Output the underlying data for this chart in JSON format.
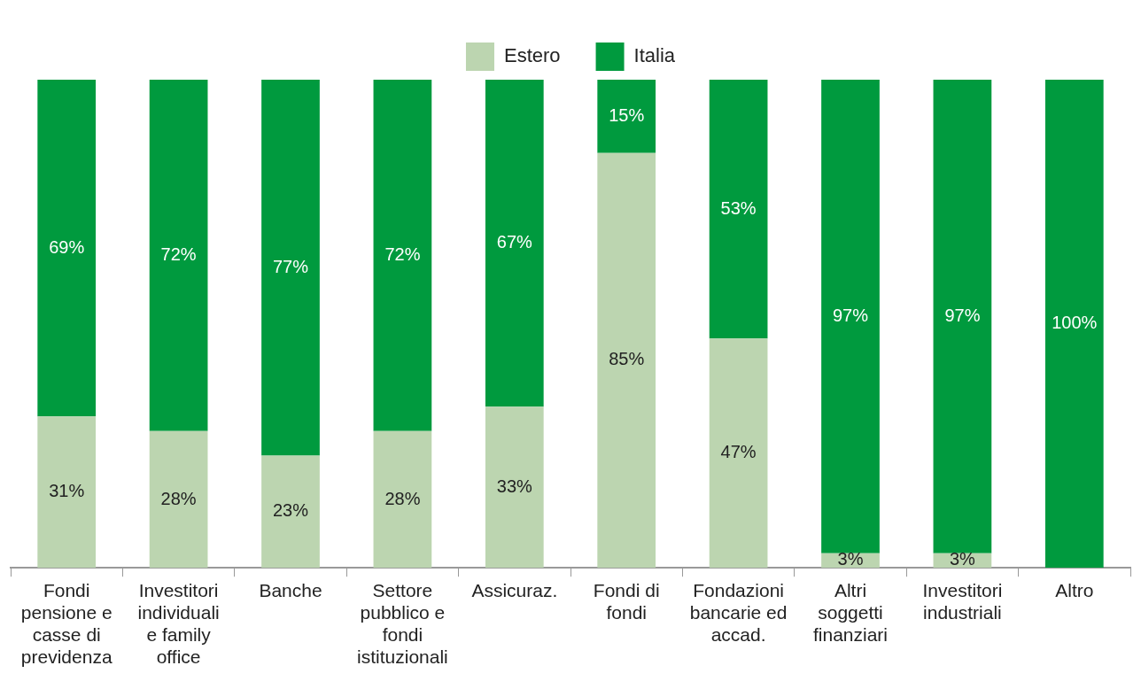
{
  "chart_data": {
    "type": "bar",
    "stacked": true,
    "legend": "top",
    "grid": false,
    "categories": [
      "Fondi pensione e casse di previdenza",
      "Investitori individuali e family office",
      "Banche",
      "Settore pubblico e fondi istituzionali",
      "Assicuraz.",
      "Fondi di fondi",
      "Fondazioni bancarie ed accad.",
      "Altri soggetti finanziari",
      "Investitori industriali",
      "Altro"
    ],
    "series": [
      {
        "name": "Estero",
        "color": "#bcd5b0",
        "values": [
          31,
          28,
          23,
          28,
          33,
          85,
          47,
          3,
          3,
          0
        ],
        "value_labels": [
          "31%",
          "28%",
          "23%",
          "28%",
          "33%",
          "85%",
          "47%",
          "3%",
          "3%",
          null
        ]
      },
      {
        "name": "Italia",
        "color": "#009a3e",
        "values": [
          69,
          72,
          77,
          72,
          67,
          15,
          53,
          97,
          97,
          100
        ],
        "value_labels": [
          "69%",
          "72%",
          "77%",
          "72%",
          "67%",
          "15%",
          "53%",
          "97%",
          "97%",
          "100%"
        ]
      }
    ]
  }
}
